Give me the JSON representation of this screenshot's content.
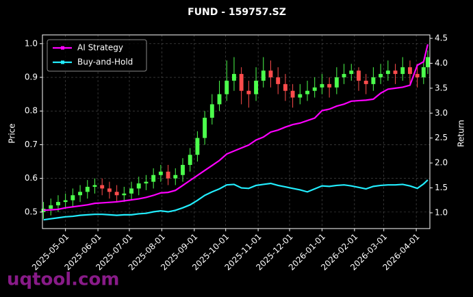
{
  "chart_data": {
    "type": "candlestick",
    "title": "FUND - 159757.SZ",
    "ylabel": "Price",
    "y2label": "Return",
    "x": [
      "2025-04-10",
      "2025-04-17",
      "2025-04-24",
      "2025-05-01",
      "2025-05-08",
      "2025-05-15",
      "2025-05-22",
      "2025-05-29",
      "2025-06-05",
      "2025-06-12",
      "2025-06-19",
      "2025-06-26",
      "2025-07-03",
      "2025-07-10",
      "2025-07-17",
      "2025-07-24",
      "2025-07-31",
      "2025-08-07",
      "2025-08-14",
      "2025-08-21",
      "2025-08-28",
      "2025-09-04",
      "2025-09-11",
      "2025-09-18",
      "2025-09-25",
      "2025-10-02",
      "2025-10-09",
      "2025-10-16",
      "2025-10-23",
      "2025-10-30",
      "2025-11-06",
      "2025-11-13",
      "2025-11-20",
      "2025-11-27",
      "2025-12-04",
      "2025-12-11",
      "2025-12-18",
      "2025-12-25",
      "2026-01-01",
      "2026-01-08",
      "2026-01-15",
      "2026-01-22",
      "2026-01-29",
      "2026-02-05",
      "2026-02-12",
      "2026-02-19",
      "2026-02-26",
      "2026-03-05",
      "2026-03-12",
      "2026-03-19",
      "2026-03-26",
      "2026-04-02",
      "2026-04-08",
      "2026-04-12"
    ],
    "open": [
      0.5,
      0.51,
      0.52,
      0.53,
      0.535,
      0.55,
      0.56,
      0.575,
      0.58,
      0.57,
      0.56,
      0.55,
      0.555,
      0.57,
      0.585,
      0.59,
      0.61,
      0.62,
      0.6,
      0.61,
      0.64,
      0.67,
      0.72,
      0.78,
      0.82,
      0.85,
      0.89,
      0.91,
      0.86,
      0.85,
      0.89,
      0.92,
      0.9,
      0.88,
      0.86,
      0.84,
      0.85,
      0.86,
      0.87,
      0.88,
      0.87,
      0.9,
      0.91,
      0.92,
      0.89,
      0.88,
      0.9,
      0.91,
      0.92,
      0.91,
      0.93,
      0.91,
      0.9,
      0.93
    ],
    "high": [
      0.53,
      0.54,
      0.55,
      0.555,
      0.57,
      0.58,
      0.595,
      0.6,
      0.6,
      0.59,
      0.58,
      0.575,
      0.59,
      0.605,
      0.61,
      0.63,
      0.64,
      0.64,
      0.63,
      0.66,
      0.69,
      0.74,
      0.8,
      0.85,
      0.89,
      0.95,
      0.96,
      0.93,
      0.89,
      0.93,
      0.96,
      0.95,
      0.93,
      0.91,
      0.88,
      0.88,
      0.89,
      0.9,
      0.91,
      0.9,
      0.93,
      0.94,
      0.94,
      0.93,
      0.91,
      0.93,
      0.94,
      0.95,
      0.94,
      0.96,
      0.95,
      0.94,
      0.95,
      0.98
    ],
    "low": [
      0.48,
      0.49,
      0.5,
      0.51,
      0.515,
      0.53,
      0.54,
      0.555,
      0.55,
      0.54,
      0.53,
      0.53,
      0.535,
      0.55,
      0.565,
      0.57,
      0.59,
      0.58,
      0.58,
      0.59,
      0.62,
      0.65,
      0.7,
      0.76,
      0.8,
      0.83,
      0.86,
      0.82,
      0.81,
      0.83,
      0.87,
      0.87,
      0.85,
      0.83,
      0.81,
      0.82,
      0.83,
      0.84,
      0.85,
      0.84,
      0.85,
      0.88,
      0.89,
      0.86,
      0.85,
      0.86,
      0.88,
      0.89,
      0.88,
      0.89,
      0.88,
      0.87,
      0.88,
      0.91
    ],
    "close": [
      0.51,
      0.52,
      0.53,
      0.535,
      0.55,
      0.56,
      0.575,
      0.58,
      0.57,
      0.56,
      0.55,
      0.555,
      0.57,
      0.585,
      0.59,
      0.61,
      0.62,
      0.6,
      0.61,
      0.64,
      0.67,
      0.72,
      0.78,
      0.82,
      0.85,
      0.89,
      0.91,
      0.86,
      0.85,
      0.89,
      0.92,
      0.9,
      0.88,
      0.86,
      0.84,
      0.85,
      0.86,
      0.87,
      0.88,
      0.87,
      0.9,
      0.91,
      0.92,
      0.89,
      0.88,
      0.9,
      0.91,
      0.92,
      0.91,
      0.93,
      0.91,
      0.9,
      0.93,
      0.96
    ],
    "up_color": "#4cff4c",
    "down_color": "#ff4c4c",
    "series": [
      {
        "name": "AI Strategy",
        "color": "#ff00ff",
        "axis": "y2",
        "values": [
          1.05,
          1.06,
          1.07,
          1.1,
          1.12,
          1.14,
          1.16,
          1.19,
          1.2,
          1.21,
          1.22,
          1.24,
          1.26,
          1.28,
          1.31,
          1.35,
          1.4,
          1.41,
          1.45,
          1.55,
          1.65,
          1.75,
          1.85,
          1.95,
          2.05,
          2.18,
          2.24,
          2.3,
          2.36,
          2.46,
          2.52,
          2.62,
          2.66,
          2.72,
          2.77,
          2.8,
          2.85,
          2.9,
          3.05,
          3.08,
          3.14,
          3.18,
          3.24,
          3.25,
          3.26,
          3.28,
          3.4,
          3.48,
          3.5,
          3.52,
          3.56,
          3.96,
          4.03,
          4.38
        ]
      },
      {
        "name": "Buy-and-Hold",
        "color": "#22eeff",
        "axis": "y2",
        "values": [
          0.86,
          0.88,
          0.9,
          0.92,
          0.93,
          0.95,
          0.96,
          0.97,
          0.97,
          0.96,
          0.95,
          0.96,
          0.96,
          0.98,
          0.99,
          1.02,
          1.04,
          1.02,
          1.05,
          1.1,
          1.16,
          1.25,
          1.35,
          1.42,
          1.48,
          1.56,
          1.57,
          1.5,
          1.49,
          1.55,
          1.57,
          1.59,
          1.55,
          1.52,
          1.49,
          1.46,
          1.42,
          1.48,
          1.54,
          1.53,
          1.55,
          1.56,
          1.54,
          1.51,
          1.48,
          1.53,
          1.55,
          1.56,
          1.56,
          1.57,
          1.54,
          1.49,
          1.58,
          1.66
        ]
      }
    ],
    "xlim": [
      "2025-04-09",
      "2026-04-14"
    ],
    "xticks": [
      "2025-05-01",
      "2025-06-01",
      "2025-07-01",
      "2025-08-01",
      "2025-09-01",
      "2025-10-01",
      "2025-11-01",
      "2025-12-01",
      "2026-01-01",
      "2026-02-01",
      "2026-03-01",
      "2026-04-01"
    ],
    "ylim": [
      0.451,
      1.026
    ],
    "yticks": [
      0.5,
      0.6,
      0.7,
      0.8,
      0.9,
      {
        "value": 1,
        "label": "1.0"
      }
    ],
    "y2lim": [
      0.684,
      4.569
    ],
    "y2ticks": [
      {
        "value": 1,
        "label": "1.0"
      },
      1.5,
      {
        "value": 2,
        "label": "2.0"
      },
      2.5,
      {
        "value": 3,
        "label": "3.0"
      },
      3.5,
      {
        "value": 4,
        "label": "4.0"
      },
      4.5
    ],
    "grid": true,
    "legend": "upper left"
  },
  "watermark": "uqtool.com"
}
